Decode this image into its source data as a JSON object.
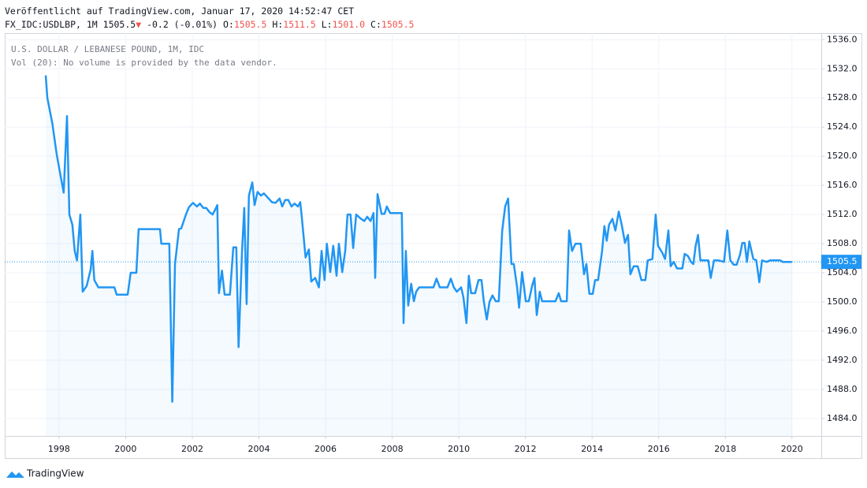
{
  "header": {
    "published": "Veröffentlicht auf TradingView.com, Januar 17, 2020 14:52:47 CET",
    "symbol": "FX_IDC:USDLBP, 1M",
    "last": "1505.5",
    "change": "-0.2 (-0.01%)",
    "ohlc": [
      {
        "key": "O:",
        "value": "1505.5"
      },
      {
        "key": "H:",
        "value": "1511.5"
      },
      {
        "key": "L:",
        "value": "1501.0"
      },
      {
        "key": "C:",
        "value": "1505.5"
      }
    ]
  },
  "brand": "TradingView",
  "chart_data": {
    "type": "line",
    "title": "U.S. DOLLAR / LEBANESE POUND, 1M, IDC",
    "subtitle": "Vol (20): No volume is provided by the data vendor.",
    "color": "#2196f3",
    "grid": true,
    "last_price": 1505.5,
    "last_price_label": "1505.5",
    "xlim": [
      1996.37,
      2020.88
    ],
    "ylim": [
      1481.6,
      1536.9
    ],
    "xticks": [
      1998,
      2000,
      2002,
      2004,
      2006,
      2008,
      2010,
      2012,
      2014,
      2016,
      2018,
      2020
    ],
    "yticks": [
      {
        "value": 1484,
        "label": "1484.0"
      },
      {
        "value": 1488,
        "label": "1488.0"
      },
      {
        "value": 1492,
        "label": "1492.0"
      },
      {
        "value": 1496,
        "label": "1496.0"
      },
      {
        "value": 1500,
        "label": "1500.0"
      },
      {
        "value": 1504,
        "label": "1504.0"
      },
      {
        "value": 1508,
        "label": "1508.0"
      },
      {
        "value": 1512,
        "label": "1512.0"
      },
      {
        "value": 1516,
        "label": "1516.0"
      },
      {
        "value": 1520,
        "label": "1520.0"
      },
      {
        "value": 1524,
        "label": "1524.0"
      },
      {
        "value": 1528,
        "label": "1528.0"
      },
      {
        "value": 1532,
        "label": "1532.0"
      },
      {
        "value": 1536,
        "label": "1536.0"
      }
    ],
    "x": [
      1997.6,
      1997.65,
      1997.8,
      1997.93,
      1998.02,
      1998.14,
      1998.24,
      1998.31,
      1998.4,
      1998.47,
      1998.54,
      1998.64,
      1998.71,
      1998.83,
      1998.95,
      1999.0,
      1999.06,
      1999.18,
      1999.66,
      1999.73,
      2000.06,
      2000.15,
      2000.32,
      2000.39,
      2001.03,
      2001.07,
      2001.31,
      2001.4,
      2001.48,
      2001.6,
      2001.67,
      2001.81,
      2001.9,
      2002.02,
      2002.14,
      2002.23,
      2002.33,
      2002.42,
      2002.52,
      2002.61,
      2002.68,
      2002.75,
      2002.8,
      2002.89,
      2002.97,
      2003.13,
      2003.23,
      2003.32,
      2003.39,
      2003.49,
      2003.56,
      2003.63,
      2003.7,
      2003.8,
      2003.87,
      2003.96,
      2004.06,
      2004.15,
      2004.27,
      2004.39,
      2004.5,
      2004.62,
      2004.7,
      2004.79,
      2004.88,
      2004.98,
      2005.07,
      2005.17,
      2005.24,
      2005.28,
      2005.4,
      2005.5,
      2005.57,
      2005.69,
      2005.8,
      2005.88,
      2005.97,
      2006.04,
      2006.14,
      2006.23,
      2006.33,
      2006.4,
      2006.5,
      2006.59,
      2006.66,
      2006.75,
      2006.83,
      2006.92,
      2007.04,
      2007.16,
      2007.25,
      2007.35,
      2007.44,
      2007.49,
      2007.56,
      2007.68,
      2007.77,
      2007.84,
      2007.94,
      2008.29,
      2008.34,
      2008.41,
      2008.48,
      2008.57,
      2008.65,
      2008.72,
      2008.81,
      2009.24,
      2009.33,
      2009.43,
      2009.66,
      2009.76,
      2009.85,
      2009.94,
      2010.07,
      2010.14,
      2010.23,
      2010.3,
      2010.37,
      2010.49,
      2010.59,
      2010.68,
      2010.75,
      2010.84,
      2010.92,
      2011.01,
      2011.11,
      2011.2,
      2011.3,
      2011.39,
      2011.48,
      2011.58,
      2011.65,
      2011.75,
      2011.81,
      2011.9,
      2012.01,
      2012.1,
      2012.2,
      2012.27,
      2012.34,
      2012.43,
      2012.5,
      2012.9,
      2013.0,
      2013.07,
      2013.24,
      2013.31,
      2013.4,
      2013.5,
      2013.66,
      2013.76,
      2013.83,
      2013.92,
      2014.02,
      2014.09,
      2014.18,
      2014.3,
      2014.37,
      2014.44,
      2014.51,
      2014.61,
      2014.7,
      2014.8,
      2014.89,
      2014.99,
      2015.08,
      2015.15,
      2015.25,
      2015.37,
      2015.48,
      2015.6,
      2015.67,
      2015.81,
      2015.91,
      2015.98,
      2016.1,
      2016.19,
      2016.29,
      2016.36,
      2016.45,
      2016.55,
      2016.71,
      2016.78,
      2016.88,
      2016.97,
      2017.04,
      2017.11,
      2017.18,
      2017.25,
      2017.35,
      2017.49,
      2017.56,
      2017.66,
      2017.8,
      2017.96,
      2018.06,
      2018.15,
      2018.25,
      2018.34,
      2018.44,
      2018.51,
      2018.58,
      2018.65,
      2018.72,
      2018.84,
      2018.93,
      2019.02,
      2019.1,
      2019.24,
      2019.34,
      2019.65,
      2019.72,
      2020.0
    ],
    "values": [
      1531.1,
      1528,
      1524.5,
      1520.3,
      1518,
      1515,
      1525.5,
      1512,
      1510.6,
      1507,
      1505.7,
      1512,
      1501.4,
      1502.2,
      1504.5,
      1507,
      1503,
      1502,
      1502,
      1501,
      1501,
      1504,
      1504,
      1510,
      1510,
      1508,
      1508,
      1486.3,
      1505.2,
      1510,
      1510.1,
      1512,
      1513,
      1513.6,
      1513.1,
      1513.5,
      1512.9,
      1512.9,
      1512.3,
      1512,
      1512.6,
      1513.3,
      1501.2,
      1504.3,
      1501,
      1501,
      1507.5,
      1507.5,
      1493.8,
      1506.8,
      1512.9,
      1499.7,
      1514.6,
      1516.4,
      1513.3,
      1515.1,
      1514.6,
      1514.9,
      1514.3,
      1513.7,
      1513.6,
      1514.2,
      1513.1,
      1514,
      1514,
      1513.1,
      1513.5,
      1513.1,
      1513.7,
      1512,
      1506.1,
      1507.2,
      1502.8,
      1503.3,
      1502,
      1507,
      1503,
      1508,
      1504.1,
      1507.7,
      1503.6,
      1508,
      1504.1,
      1507,
      1512,
      1512,
      1507.4,
      1512,
      1511.5,
      1511.1,
      1511.7,
      1511.1,
      1512.2,
      1503.3,
      1514.8,
      1512.1,
      1512.1,
      1513.1,
      1512.2,
      1512.2,
      1497.1,
      1507,
      1499.5,
      1502.5,
      1500.1,
      1501.4,
      1502,
      1502,
      1503.2,
      1502,
      1502,
      1503.2,
      1502,
      1501.4,
      1502,
      1500.6,
      1497.1,
      1503.6,
      1501.2,
      1501.2,
      1503,
      1503,
      1500.1,
      1497.6,
      1500,
      1500.9,
      1500.1,
      1500.1,
      1509.7,
      1513.1,
      1514.2,
      1505.2,
      1505.2,
      1502,
      1499.2,
      1504.1,
      1500.1,
      1500.1,
      1502.2,
      1503.3,
      1498.2,
      1501.4,
      1500.1,
      1500.1,
      1501.2,
      1500.1,
      1500.1,
      1509.8,
      1507,
      1508,
      1508,
      1503.8,
      1505.2,
      1501.1,
      1501.1,
      1503,
      1503,
      1507,
      1510.4,
      1508.4,
      1510.6,
      1511.4,
      1509.8,
      1512.4,
      1510.6,
      1508.1,
      1509.2,
      1503.8,
      1504.9,
      1504.9,
      1503,
      1503,
      1505.7,
      1505.9,
      1512,
      1507.7,
      1506.8,
      1505.9,
      1509.8,
      1504.9,
      1505.5,
      1504.6,
      1504.6,
      1506.6,
      1506.3,
      1505.5,
      1505.2,
      1507.7,
      1509.2,
      1505.7,
      1505.7,
      1505.7,
      1503.3,
      1505.7,
      1505.7,
      1505.5,
      1509.8,
      1505.7,
      1505.1,
      1505.1,
      1506.5,
      1508.1,
      1508.1,
      1505.5,
      1508.3,
      1505.9,
      1505.7,
      1502.7,
      1505.7,
      1505.5,
      1505.7,
      1505.7,
      1505.5,
      1505.5
    ]
  }
}
